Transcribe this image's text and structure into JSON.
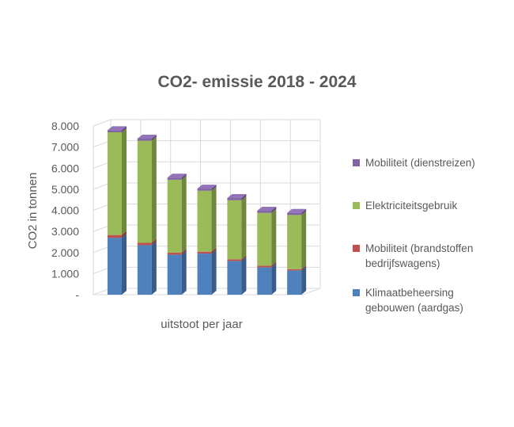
{
  "chart_data": {
    "type": "bar",
    "stacked": true,
    "three_d": true,
    "title": "CO2- emissie 2018 - 2024",
    "xlabel": "uitstoot per jaar",
    "ylabel": "CO2 in tonnen",
    "ylim": [
      0,
      8000
    ],
    "y_ticks": [
      "-",
      "1.000",
      "2.000",
      "3.000",
      "4.000",
      "5.000",
      "6.000",
      "7.000",
      "8.000"
    ],
    "categories": [
      "",
      "",
      "",
      "",
      "",
      "",
      ""
    ],
    "grid": true,
    "legend_position": "right",
    "series": [
      {
        "name": "Klimaatbeheersing gebouwen (aardgas)",
        "color": "#4f81bd",
        "values": [
          2700,
          2350,
          1900,
          1950,
          1600,
          1300,
          1150
        ]
      },
      {
        "name": "Mobiliteit (brandstoffen bedrijfswagens)",
        "color": "#c0504d",
        "values": [
          130,
          110,
          90,
          90,
          80,
          70,
          60
        ]
      },
      {
        "name": "Elektriciteitsgebruik",
        "color": "#9bbb59",
        "values": [
          4870,
          4840,
          3460,
          2890,
          2800,
          2510,
          2570
        ]
      },
      {
        "name": "Mobiliteit (dienstreizen)",
        "color": "#8064a2",
        "values": [
          100,
          100,
          100,
          100,
          100,
          100,
          100
        ]
      }
    ]
  }
}
